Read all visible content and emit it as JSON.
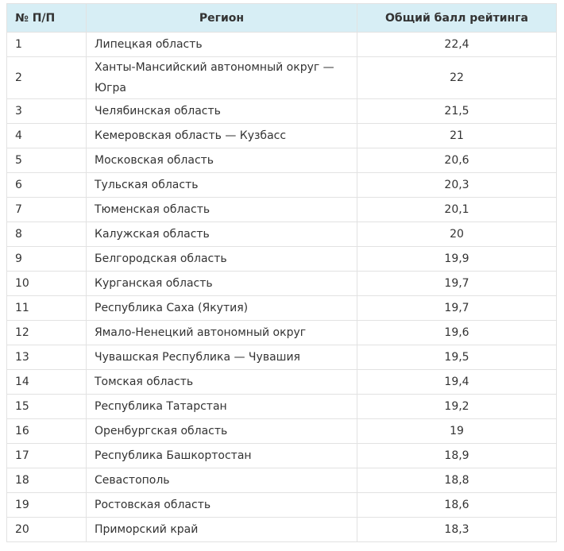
{
  "table": {
    "header": [
      "№ П/П",
      "Регион",
      "Общий балл рейтинга"
    ],
    "rows": [
      [
        "1",
        "Липецкая область",
        "22,4"
      ],
      [
        "2",
        "Ханты-Мансийский автономный округ — Югра",
        "22"
      ],
      [
        "3",
        "Челябинская область",
        "21,5"
      ],
      [
        "4",
        "Кемеровская область — Кузбасс",
        "21"
      ],
      [
        "5",
        "Московская область",
        "20,6"
      ],
      [
        "6",
        "Тульская область",
        "20,3"
      ],
      [
        "7",
        "Тюменская область",
        "20,1"
      ],
      [
        "8",
        "Калужская область",
        "20"
      ],
      [
        "9",
        "Белгородская область",
        "19,9"
      ],
      [
        "10",
        "Курганская область",
        "19,7"
      ],
      [
        "11",
        "Республика Саха (Якутия)",
        "19,7"
      ],
      [
        "12",
        "Ямало-Ненецкий автономный округ",
        "19,6"
      ],
      [
        "13",
        "Чувашская Республика — Чувашия",
        "19,5"
      ],
      [
        "14",
        "Томская область",
        "19,4"
      ],
      [
        "15",
        "Республика Татарстан",
        "19,2"
      ],
      [
        "16",
        "Оренбургская область",
        "19"
      ],
      [
        "17",
        "Республика Башкортостан",
        "18,9"
      ],
      [
        "18",
        "Севастополь",
        "18,8"
      ],
      [
        "19",
        "Ростовская область",
        "18,6"
      ],
      [
        "20",
        "Приморский край",
        "18,3"
      ]
    ]
  }
}
